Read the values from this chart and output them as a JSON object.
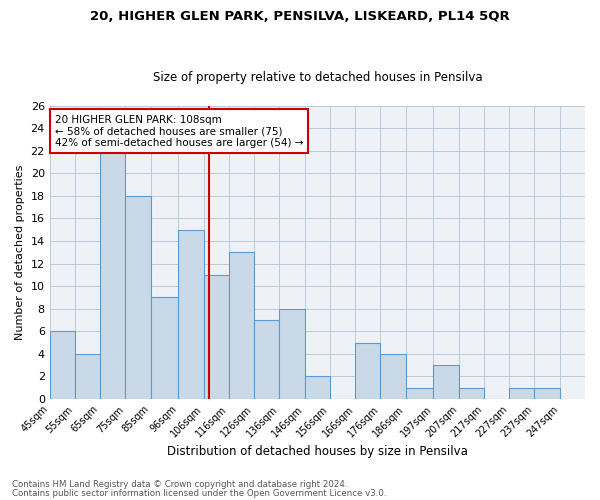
{
  "title1": "20, HIGHER GLEN PARK, PENSILVA, LISKEARD, PL14 5QR",
  "title2": "Size of property relative to detached houses in Pensilva",
  "xlabel": "Distribution of detached houses by size in Pensilva",
  "ylabel": "Number of detached properties",
  "footnote1": "Contains HM Land Registry data © Crown copyright and database right 2024.",
  "footnote2": "Contains public sector information licensed under the Open Government Licence v3.0.",
  "annotation_line1": "20 HIGHER GLEN PARK: 108sqm",
  "annotation_line2": "← 58% of detached houses are smaller (75)",
  "annotation_line3": "42% of semi-detached houses are larger (54) →",
  "property_size": 108,
  "bins": [
    45,
    55,
    65,
    75,
    85,
    96,
    106,
    116,
    126,
    136,
    146,
    156,
    166,
    176,
    186,
    197,
    207,
    217,
    227,
    237,
    247
  ],
  "counts": [
    6,
    4,
    22,
    18,
    9,
    15,
    11,
    13,
    7,
    8,
    2,
    0,
    5,
    4,
    1,
    3,
    1,
    0,
    1,
    1
  ],
  "bar_color": "#c9d9e8",
  "bar_edge_color": "#5b9bd5",
  "vline_color": "#cc0000",
  "annotation_box_edge": "#cc0000",
  "grid_color": "#b0c4d8",
  "background_color": "#eef2f7",
  "ylim": [
    0,
    26
  ],
  "yticks": [
    0,
    2,
    4,
    6,
    8,
    10,
    12,
    14,
    16,
    18,
    20,
    22,
    24,
    26
  ]
}
